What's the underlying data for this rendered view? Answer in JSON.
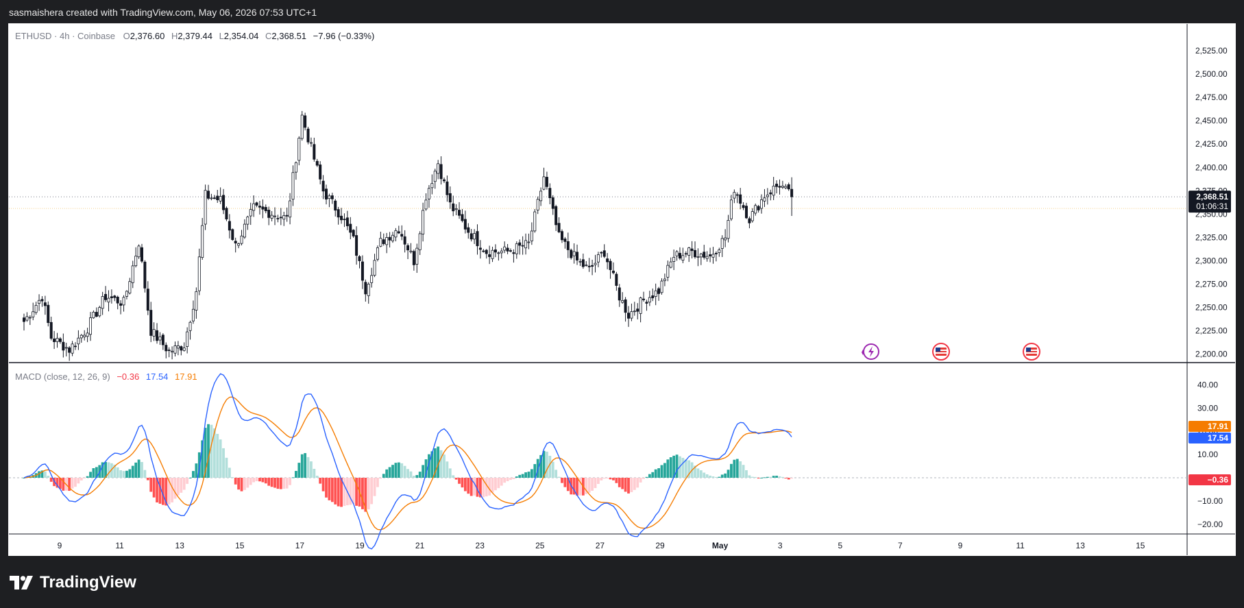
{
  "header": {
    "credit": "sasmaishera created with TradingView.com, May 06, 2026 07:53 UTC+1"
  },
  "legend": {
    "symbol": "ETHUSD · 4h · Coinbase",
    "o_label": "O",
    "o": "2,376.60",
    "h_label": "H",
    "h": "2,379.44",
    "l_label": "L",
    "l": "2,354.04",
    "c_label": "C",
    "c": "2,368.51",
    "change": "−7.96 (−0.33%)"
  },
  "price_tag": {
    "price": "2,368.51",
    "countdown": "01:06:31"
  },
  "macd_legend": {
    "title": "MACD (close, 12, 26, 9)",
    "hist": "−0.36",
    "macd": "17.54",
    "signal": "17.91"
  },
  "macd_tags": {
    "signal": "17.91",
    "macd": "17.54",
    "hist": "−0.36"
  },
  "branding": {
    "logo_text": "TradingView"
  },
  "colors": {
    "up": "#26a69a",
    "down": "#f23645",
    "macd": "#2962ff",
    "signal": "#f57c00",
    "candle_body": "#131722"
  },
  "chart_data": [
    {
      "type": "candlestick",
      "symbol": "ETHUSD",
      "interval": "4h",
      "ylim": [
        2180,
        2535
      ],
      "y_ticks": [
        "2,200.00",
        "2,225.00",
        "2,250.00",
        "2,275.00",
        "2,300.00",
        "2,325.00",
        "2,350.00",
        "2,375.00",
        "2,400.00",
        "2,425.00",
        "2,450.00",
        "2,475.00",
        "2,500.00",
        "2,525.00"
      ],
      "x_ticks": [
        "9",
        "11",
        "13",
        "15",
        "17",
        "19",
        "21",
        "23",
        "25",
        "27",
        "29",
        "May",
        "3",
        "5",
        "7",
        "9",
        "11",
        "13",
        "15"
      ],
      "anchors": [
        {
          "x": 0,
          "y": 2235
        },
        {
          "x": 6,
          "y": 2262
        },
        {
          "x": 9,
          "y": 2218
        },
        {
          "x": 15,
          "y": 2205
        },
        {
          "x": 21,
          "y": 2228
        },
        {
          "x": 27,
          "y": 2262
        },
        {
          "x": 33,
          "y": 2255
        },
        {
          "x": 38,
          "y": 2320
        },
        {
          "x": 42,
          "y": 2225
        },
        {
          "x": 48,
          "y": 2203
        },
        {
          "x": 53,
          "y": 2210
        },
        {
          "x": 57,
          "y": 2268
        },
        {
          "x": 60,
          "y": 2370
        },
        {
          "x": 65,
          "y": 2365
        },
        {
          "x": 70,
          "y": 2316
        },
        {
          "x": 76,
          "y": 2356
        },
        {
          "x": 81,
          "y": 2352
        },
        {
          "x": 87,
          "y": 2345
        },
        {
          "x": 92,
          "y": 2455
        },
        {
          "x": 99,
          "y": 2375
        },
        {
          "x": 105,
          "y": 2348
        },
        {
          "x": 109,
          "y": 2322
        },
        {
          "x": 113,
          "y": 2270
        },
        {
          "x": 118,
          "y": 2320
        },
        {
          "x": 124,
          "y": 2335
        },
        {
          "x": 129,
          "y": 2300
        },
        {
          "x": 133,
          "y": 2370
        },
        {
          "x": 137,
          "y": 2405
        },
        {
          "x": 141,
          "y": 2360
        },
        {
          "x": 147,
          "y": 2332
        },
        {
          "x": 153,
          "y": 2310
        },
        {
          "x": 160,
          "y": 2310
        },
        {
          "x": 167,
          "y": 2318
        },
        {
          "x": 172,
          "y": 2390
        },
        {
          "x": 177,
          "y": 2325
        },
        {
          "x": 183,
          "y": 2300
        },
        {
          "x": 187,
          "y": 2290
        },
        {
          "x": 192,
          "y": 2310
        },
        {
          "x": 197,
          "y": 2262
        },
        {
          "x": 200,
          "y": 2242
        },
        {
          "x": 205,
          "y": 2258
        },
        {
          "x": 210,
          "y": 2268
        },
        {
          "x": 215,
          "y": 2305
        },
        {
          "x": 221,
          "y": 2310
        },
        {
          "x": 227,
          "y": 2305
        },
        {
          "x": 232,
          "y": 2325
        },
        {
          "x": 235,
          "y": 2378
        },
        {
          "x": 240,
          "y": 2345
        },
        {
          "x": 245,
          "y": 2370
        },
        {
          "x": 250,
          "y": 2382
        },
        {
          "x": 254,
          "y": 2368
        }
      ],
      "last": {
        "open": 2376.6,
        "high": 2379.44,
        "low": 2354.04,
        "close": 2368.51
      }
    },
    {
      "type": "macd",
      "params": [
        12,
        26,
        9
      ],
      "ylim": [
        -25,
        45
      ],
      "y_ticks": [
        "40.00",
        "30.00",
        "20.00",
        "10.00",
        "0.00",
        "−10.00",
        "−20.00"
      ],
      "y_tick_values": [
        40,
        30,
        20,
        10,
        0,
        -10,
        -20
      ],
      "last": {
        "macd": 17.54,
        "signal": 17.91,
        "histogram": -0.36
      }
    }
  ]
}
